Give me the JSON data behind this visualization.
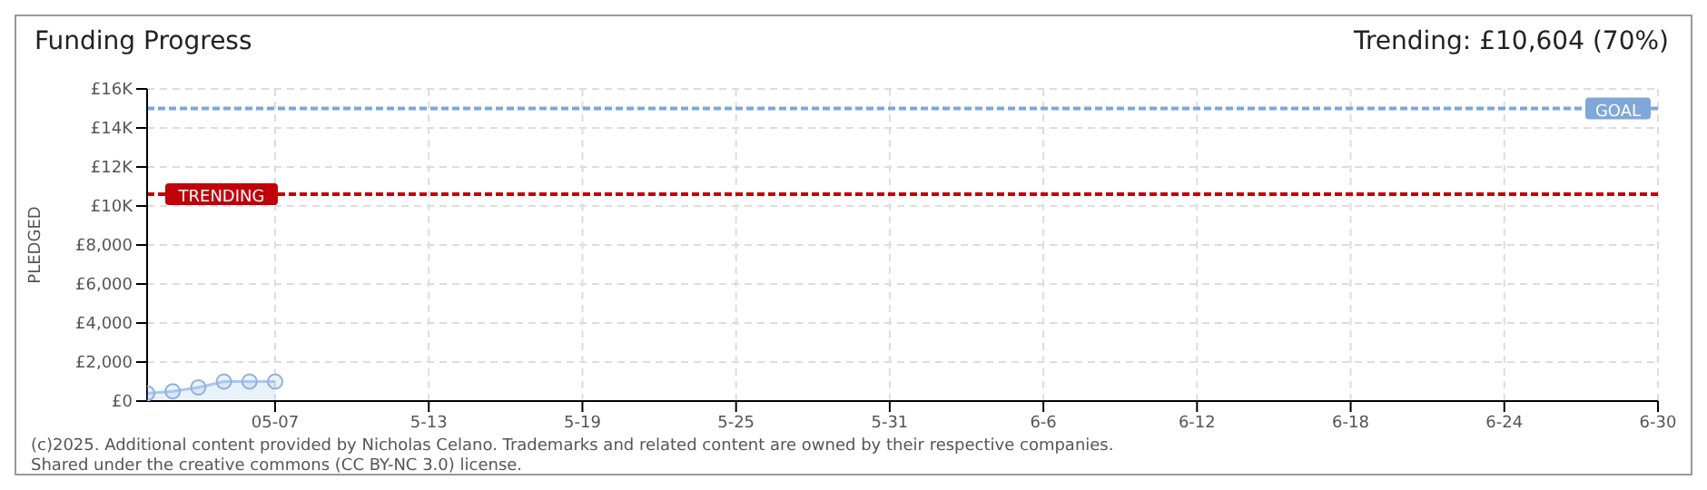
{
  "chart_data": {
    "type": "area",
    "title": "Funding Progress",
    "subtitle": "Trending: £10,604 (70%)",
    "ylabel": "PLEDGED",
    "annotations": [
      "(c)2025. Additional content provided by Nicholas Celano. Trademarks and related content are owned by their respective companies.",
      "Shared under the creative commons (CC BY-NC 3.0) license."
    ],
    "x": [
      "2025-05-02",
      "2025-05-03",
      "2025-05-04",
      "2025-05-05",
      "2025-05-06",
      "2025-05-07"
    ],
    "series": [
      {
        "color": "#a9c8ee",
        "values": [
          400,
          500,
          700,
          1000,
          1000,
          1000
        ]
      }
    ],
    "xlim": [
      "2025-05-02",
      "2025-06-30"
    ],
    "xticks": [
      {
        "value": "2025-05-07",
        "label": "05-07"
      },
      {
        "value": "2025-05-13",
        "label": "5-13"
      },
      {
        "value": "2025-05-19",
        "label": "5-19"
      },
      {
        "value": "2025-05-25",
        "label": "5-25"
      },
      {
        "value": "2025-05-31",
        "label": "5-31"
      },
      {
        "value": "2025-06-06",
        "label": "6-6"
      },
      {
        "value": "2025-06-12",
        "label": "6-12"
      },
      {
        "value": "2025-06-18",
        "label": "6-18"
      },
      {
        "value": "2025-06-24",
        "label": "6-24"
      },
      {
        "value": "2025-06-30",
        "label": "6-30"
      }
    ],
    "ylim": [
      0,
      16000
    ],
    "yticks": [
      {
        "value": 0,
        "label": "£0"
      },
      {
        "value": 2000,
        "label": "£2,000"
      },
      {
        "value": 4000,
        "label": "£4,000"
      },
      {
        "value": 6000,
        "label": "£6,000"
      },
      {
        "value": 8000,
        "label": "£8,000"
      },
      {
        "value": 10000,
        "label": "£10K"
      },
      {
        "value": 12000,
        "label": "£12K"
      },
      {
        "value": 14000,
        "label": "£14K"
      },
      {
        "value": 16000,
        "label": "£16K"
      }
    ],
    "ref_lines": [
      {
        "axis": "y",
        "value": 15000,
        "label": "GOAL",
        "color": "#7fa7d9",
        "line_style": "dashed"
      },
      {
        "axis": "y",
        "value": 10604,
        "label": "TRENDING",
        "color": "#c0000a",
        "line_style": "dashed"
      }
    ],
    "grid": true,
    "marker": "circle"
  }
}
